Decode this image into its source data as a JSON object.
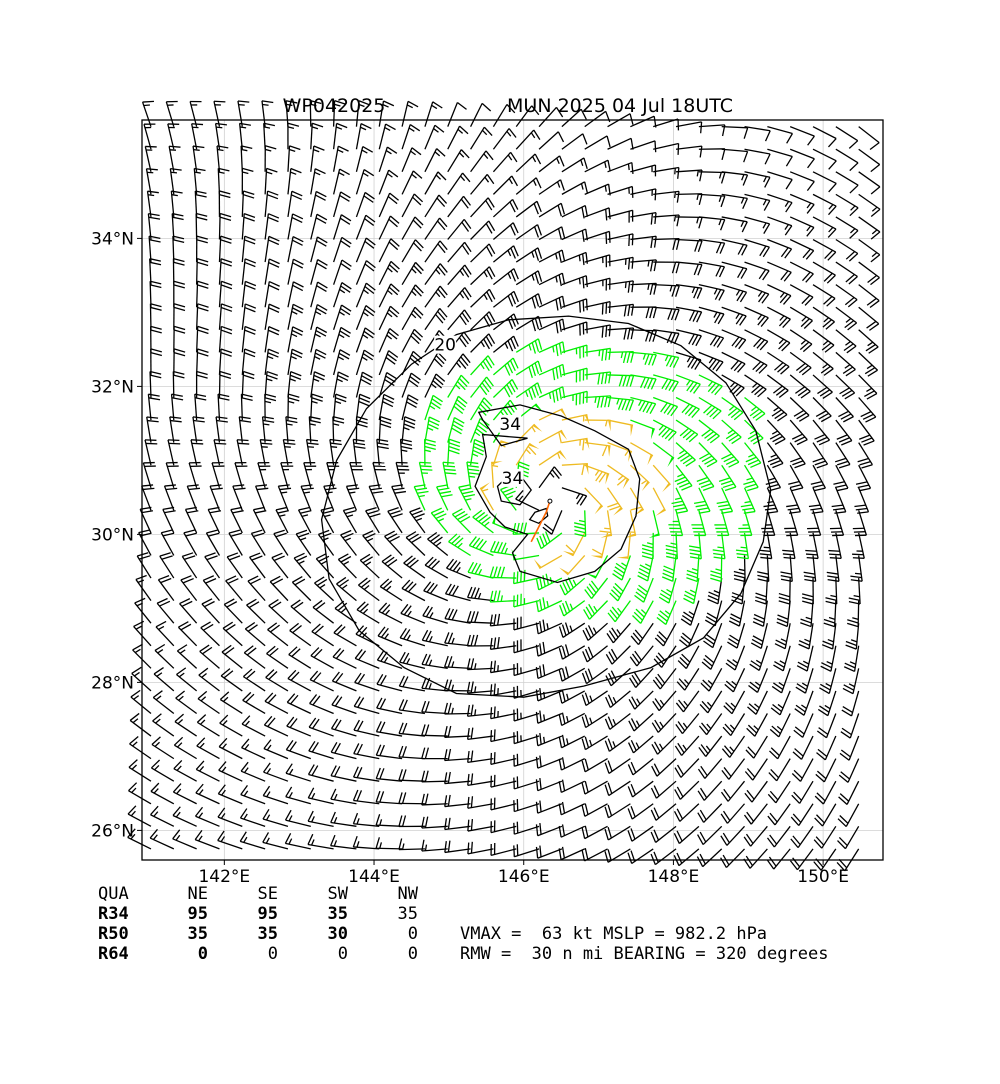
{
  "title_left": "WP042025",
  "title_right": "MUN 2025 04 Jul 18UTC",
  "colors": {
    "below34": "#000000",
    "r34": "#00ee00",
    "r50": "#eebb22",
    "track": "#ff6600",
    "contour": "#000000"
  },
  "chart_data": {
    "type": "wind-barb-map",
    "x_range": [
      140.9,
      150.8
    ],
    "y_range": [
      25.6,
      35.6
    ],
    "xticks": [
      {
        "value": 142,
        "label": "142°E"
      },
      {
        "value": 144,
        "label": "144°E"
      },
      {
        "value": 146,
        "label": "146°E"
      },
      {
        "value": 148,
        "label": "148°E"
      },
      {
        "value": 150,
        "label": "150°E"
      }
    ],
    "yticks": [
      {
        "value": 26,
        "label": "26°N"
      },
      {
        "value": 28,
        "label": "28°N"
      },
      {
        "value": 30,
        "label": "30°N"
      },
      {
        "value": 32,
        "label": "32°N"
      },
      {
        "value": 34,
        "label": "34°N"
      }
    ],
    "grid": true,
    "storm_center": [
      146.35,
      30.45
    ],
    "contours": [
      {
        "level": 20,
        "label": "20",
        "label_pos": [
          144.95,
          32.55
        ],
        "points": [
          [
            145.8,
            32.9
          ],
          [
            146.6,
            32.95
          ],
          [
            147.4,
            32.85
          ],
          [
            148.1,
            32.55
          ],
          [
            148.7,
            32.05
          ],
          [
            149.1,
            31.4
          ],
          [
            149.3,
            30.6
          ],
          [
            149.2,
            29.9
          ],
          [
            148.9,
            29.2
          ],
          [
            148.4,
            28.6
          ],
          [
            147.7,
            28.2
          ],
          [
            146.8,
            27.95
          ],
          [
            146.0,
            27.8
          ],
          [
            145.1,
            27.85
          ],
          [
            144.4,
            28.2
          ],
          [
            143.8,
            28.7
          ],
          [
            143.4,
            29.4
          ],
          [
            143.3,
            30.2
          ],
          [
            143.5,
            31.0
          ],
          [
            143.9,
            31.7
          ],
          [
            144.5,
            32.3
          ],
          [
            145.1,
            32.7
          ]
        ]
      },
      {
        "level": 34,
        "label": "34",
        "label_pos": [
          145.82,
          31.48
        ],
        "points": [
          [
            145.4,
            31.65
          ],
          [
            145.95,
            31.75
          ],
          [
            146.5,
            31.6
          ],
          [
            146.95,
            31.4
          ],
          [
            147.4,
            31.15
          ],
          [
            147.55,
            30.75
          ],
          [
            147.5,
            30.25
          ],
          [
            147.3,
            29.8
          ],
          [
            146.95,
            29.5
          ],
          [
            146.45,
            29.35
          ],
          [
            145.95,
            29.5
          ],
          [
            145.85,
            29.75
          ],
          [
            146.05,
            30.0
          ],
          [
            145.75,
            30.1
          ],
          [
            145.55,
            30.3
          ],
          [
            145.35,
            30.65
          ],
          [
            145.5,
            31.05
          ],
          [
            145.45,
            31.35
          ],
          [
            146.05,
            31.3
          ],
          [
            145.7,
            31.2
          ],
          [
            145.45,
            31.55
          ]
        ]
      },
      {
        "level": 34,
        "label": "34",
        "label_pos": [
          145.85,
          30.75
        ],
        "points": [
          [
            145.95,
            30.8
          ],
          [
            146.1,
            30.6
          ],
          [
            145.95,
            30.4
          ],
          [
            145.7,
            30.45
          ],
          [
            145.65,
            30.65
          ],
          [
            145.8,
            30.8
          ]
        ]
      },
      {
        "level": 64,
        "label": "",
        "label_pos": [
          146.3,
          30.3
        ],
        "points": [
          [
            146.15,
            30.3
          ],
          [
            146.3,
            30.35
          ],
          [
            146.32,
            30.25
          ],
          [
            146.2,
            30.15
          ],
          [
            146.08,
            30.2
          ]
        ]
      }
    ],
    "track": [
      [
        146.1,
        29.9
      ],
      [
        146.2,
        30.1
      ],
      [
        146.3,
        30.3
      ],
      [
        146.35,
        30.45
      ]
    ],
    "series": [
      {
        "name": "wind",
        "values": "gridded 10-m wind field, speed in kt, cyclonic circulation, max 63 kt"
      }
    ]
  },
  "table": {
    "header": [
      "QUA",
      "NE",
      "SE",
      "SW",
      "NW"
    ],
    "rows": [
      {
        "label": "R34",
        "values": [
          "95",
          "95",
          "35",
          "35"
        ]
      },
      {
        "label": "R50",
        "values": [
          "35",
          "35",
          "30",
          "0"
        ]
      },
      {
        "label": "R64",
        "values": [
          "0",
          "0",
          "0",
          "0"
        ]
      }
    ]
  },
  "info": {
    "line1": "VMAX =  63 kt MSLP = 982.2 hPa",
    "line2": "RMW =  30 n mi BEARING = 320 degrees"
  }
}
